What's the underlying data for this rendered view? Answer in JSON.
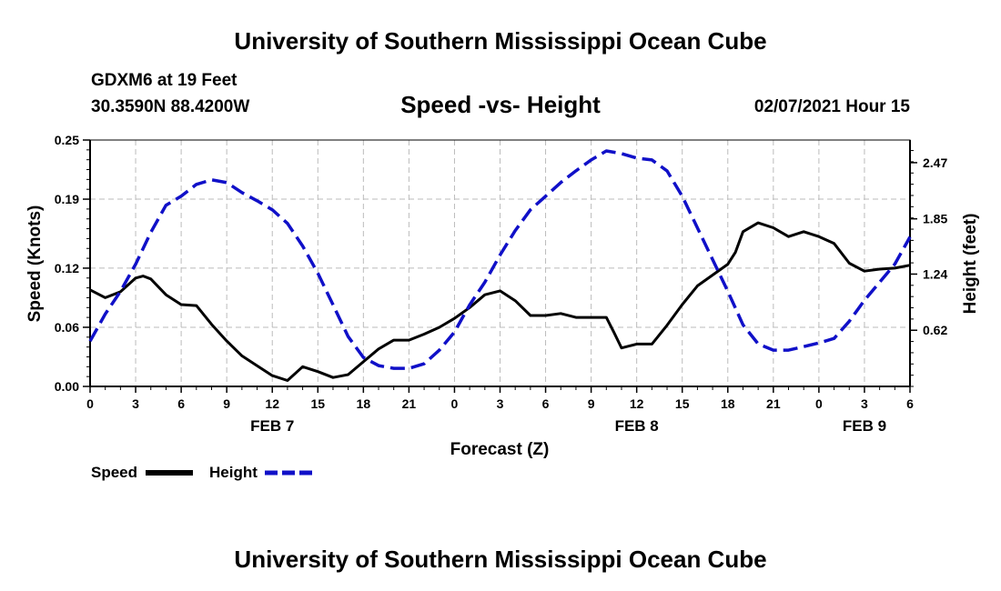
{
  "header": {
    "title": "University of Southern Mississippi Ocean Cube",
    "station": "GDXM6 at 19 Feet",
    "coordinates": "30.3590N 88.4200W",
    "datetime": "02/07/2021 Hour 15"
  },
  "footer": {
    "title": "University of Southern Mississippi Ocean Cube"
  },
  "colors": {
    "speed": "#000000",
    "height": "#1010c8",
    "grid": "#bbbbbb"
  },
  "chart_data": {
    "type": "line",
    "title": "Speed -vs- Height",
    "xlabel": "Forecast (Z)",
    "ylabel": "Speed (Knots)",
    "y2label": "Height (feet)",
    "grid": true,
    "x_range": [
      0,
      54
    ],
    "x_ticks": [
      0,
      3,
      6,
      9,
      12,
      15,
      18,
      21,
      24,
      27,
      30,
      33,
      36,
      39,
      42,
      45,
      48,
      51,
      54
    ],
    "x_tick_labels": [
      "0",
      "3",
      "6",
      "9",
      "12",
      "15",
      "18",
      "21",
      "0",
      "3",
      "6",
      "9",
      "12",
      "15",
      "18",
      "21",
      "0",
      "3",
      "6"
    ],
    "day_labels": [
      {
        "x": 12,
        "label": "FEB 7"
      },
      {
        "x": 36,
        "label": "FEB 8"
      },
      {
        "x": 51,
        "label": "FEB 9"
      }
    ],
    "ylim": [
      0,
      0.25
    ],
    "y_ticks": [
      0,
      0.06,
      0.12,
      0.19,
      0.25
    ],
    "y_tick_labels": [
      "0.00",
      "0.06",
      "0.12",
      "0.19",
      "0.25"
    ],
    "y2lim": [
      0,
      2.72
    ],
    "y2_ticks": [
      0.62,
      1.24,
      1.85,
      2.47
    ],
    "y2_tick_labels": [
      "0.62",
      "1.24",
      "1.85",
      "2.47"
    ],
    "legend": [
      {
        "name": "Speed",
        "style": "solid"
      },
      {
        "name": "Height",
        "style": "dashed"
      }
    ],
    "series": [
      {
        "name": "Speed",
        "axis": "left",
        "style": "solid",
        "x": [
          0,
          1,
          2,
          3,
          3.5,
          4,
          5,
          6,
          7,
          8,
          9,
          10,
          11,
          12,
          13,
          14,
          15,
          16,
          17,
          18,
          19,
          20,
          21,
          22,
          23,
          24,
          25,
          26,
          27,
          28,
          29,
          30,
          31,
          32,
          33,
          34,
          34.5,
          35,
          35.5,
          36,
          37,
          38,
          39,
          40,
          41,
          42,
          42.5,
          43,
          44,
          45,
          46,
          47,
          48,
          49,
          50,
          51,
          52,
          53,
          54
        ],
        "values": [
          0.098,
          0.09,
          0.096,
          0.11,
          0.112,
          0.109,
          0.093,
          0.083,
          0.082,
          0.063,
          0.046,
          0.031,
          0.021,
          0.011,
          0.006,
          0.02,
          0.015,
          0.009,
          0.012,
          0.025,
          0.038,
          0.047,
          0.047,
          0.053,
          0.06,
          0.069,
          0.08,
          0.093,
          0.097,
          0.087,
          0.072,
          0.072,
          0.074,
          0.07,
          0.07,
          0.07,
          0.055,
          0.039,
          0.041,
          0.043,
          0.043,
          0.062,
          0.083,
          0.102,
          0.113,
          0.124,
          0.136,
          0.157,
          0.166,
          0.161,
          0.152,
          0.157,
          0.152,
          0.145,
          0.125,
          0.117,
          0.119,
          0.12,
          0.123
        ]
      },
      {
        "name": "Height",
        "axis": "right",
        "style": "dashed",
        "x": [
          0,
          1,
          2,
          3,
          4,
          5,
          6,
          7,
          8,
          9,
          10,
          11,
          12,
          13,
          14,
          15,
          16,
          17,
          18,
          19,
          20,
          21,
          22,
          23,
          24,
          25,
          26,
          27,
          28,
          29,
          30,
          31,
          32,
          33,
          34,
          35,
          36,
          37,
          38,
          39,
          40,
          41,
          42,
          43,
          44,
          45,
          46,
          47,
          48,
          49,
          50,
          51,
          52,
          53,
          54
        ],
        "values": [
          0.5,
          0.8,
          1.05,
          1.35,
          1.7,
          2.0,
          2.1,
          2.23,
          2.28,
          2.25,
          2.14,
          2.05,
          1.95,
          1.8,
          1.55,
          1.25,
          0.9,
          0.55,
          0.32,
          0.23,
          0.2,
          0.2,
          0.25,
          0.4,
          0.6,
          0.9,
          1.15,
          1.45,
          1.72,
          1.95,
          2.1,
          2.25,
          2.38,
          2.5,
          2.6,
          2.57,
          2.52,
          2.5,
          2.38,
          2.1,
          1.75,
          1.4,
          1.05,
          0.68,
          0.47,
          0.4,
          0.4,
          0.44,
          0.48,
          0.53,
          0.72,
          0.95,
          1.15,
          1.35,
          1.65
        ]
      }
    ]
  }
}
